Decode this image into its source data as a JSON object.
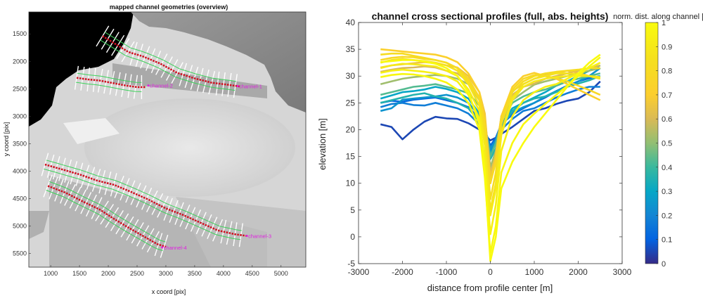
{
  "chart_data": [
    {
      "type": "image-overlay",
      "title": "mapped channel geometries (overview)",
      "xlabel": "x coord [pix]",
      "ylabel": "y coord [pix]",
      "xlim": [
        620,
        5430
      ],
      "ylim": [
        5750,
        1100
      ],
      "y_reversed": true,
      "xticks": [
        1000,
        1500,
        2000,
        2500,
        3000,
        3500,
        4000,
        4500,
        5000
      ],
      "yticks": [
        1500,
        2000,
        2500,
        3000,
        3500,
        4000,
        4500,
        5000,
        5500
      ],
      "channels": [
        {
          "name": "channel-1",
          "label_at": [
            4270,
            2450
          ],
          "centerline": [
            [
              1900,
              1540
            ],
            [
              2150,
              1700
            ],
            [
              2350,
              1830
            ],
            [
              2600,
              1910
            ],
            [
              2900,
              2040
            ],
            [
              3200,
              2210
            ],
            [
              3500,
              2310
            ],
            [
              3800,
              2390
            ],
            [
              4100,
              2430
            ],
            [
              4300,
              2460
            ]
          ]
        },
        {
          "name": "channel-2",
          "label_at": [
            2720,
            2440
          ],
          "centerline": [
            [
              1450,
              2300
            ],
            [
              1650,
              2330
            ],
            [
              1850,
              2350
            ],
            [
              2050,
              2390
            ],
            [
              2300,
              2440
            ],
            [
              2500,
              2470
            ],
            [
              2650,
              2470
            ]
          ]
        },
        {
          "name": "channel-3",
          "label_at": [
            4430,
            5180
          ],
          "centerline": [
            [
              900,
              3880
            ],
            [
              1200,
              3970
            ],
            [
              1500,
              4060
            ],
            [
              1800,
              4170
            ],
            [
              2100,
              4250
            ],
            [
              2400,
              4380
            ],
            [
              2700,
              4520
            ],
            [
              3000,
              4680
            ],
            [
              3300,
              4800
            ],
            [
              3600,
              4940
            ],
            [
              3900,
              5080
            ],
            [
              4200,
              5150
            ],
            [
              4400,
              5180
            ]
          ]
        },
        {
          "name": "channel-4",
          "label_at": [
            2960,
            5390
          ],
          "centerline": [
            [
              950,
              4270
            ],
            [
              1250,
              4390
            ],
            [
              1550,
              4550
            ],
            [
              1850,
              4700
            ],
            [
              2100,
              4870
            ],
            [
              2350,
              5030
            ],
            [
              2600,
              5180
            ],
            [
              2850,
              5330
            ],
            [
              3000,
              5380
            ]
          ]
        }
      ]
    },
    {
      "type": "line",
      "title": "channel cross sectional profiles (full, abs. heights)",
      "xlabel": "distance from profile center [m]",
      "ylabel": "elevation [m]",
      "xlim": [
        -3000,
        3000
      ],
      "ylim": [
        -5,
        40
      ],
      "xticks": [
        -3000,
        -2000,
        -1000,
        0,
        1000,
        2000,
        3000
      ],
      "yticks": [
        -5,
        0,
        5,
        10,
        15,
        20,
        25,
        30,
        35,
        40
      ],
      "colorbar": {
        "label": "norm. dist. along channel [-]",
        "range": [
          0,
          1
        ],
        "ticks": [
          0,
          0.1,
          0.2,
          0.3,
          0.4,
          0.5,
          0.6,
          0.7,
          0.8,
          0.9,
          1
        ],
        "colormap": "parula"
      },
      "x": [
        -2500,
        -2250,
        -2000,
        -1750,
        -1500,
        -1250,
        -1000,
        -750,
        -500,
        -250,
        -125,
        0,
        125,
        250,
        500,
        750,
        1000,
        1250,
        1500,
        1750,
        2000,
        2250,
        2500
      ],
      "series": [
        {
          "t": 0.05,
          "values": [
            21,
            20.5,
            18.2,
            20,
            21.5,
            22.4,
            22.1,
            22,
            21.2,
            20,
            19,
            18,
            18.5,
            19.2,
            20.5,
            22,
            23.5,
            24,
            24.8,
            25.4,
            25.8,
            27,
            29
          ]
        },
        {
          "t": 0.12,
          "values": [
            25,
            25.4,
            25.2,
            25.6,
            25.8,
            26,
            25.5,
            25,
            24.2,
            22,
            20,
            17,
            18.5,
            21,
            22.8,
            24,
            25,
            26,
            27.2,
            28.2,
            29,
            29.6,
            30
          ]
        },
        {
          "t": 0.18,
          "values": [
            24.2,
            24.8,
            25,
            24.6,
            24.5,
            25,
            24.5,
            24,
            23,
            21,
            19,
            16,
            17.5,
            20,
            22,
            23.5,
            24,
            25,
            26,
            26.8,
            27.5,
            28,
            28
          ]
        },
        {
          "t": 0.24,
          "values": [
            23.5,
            24,
            25.6,
            25.8,
            26,
            26.2,
            26.5,
            26,
            25,
            22.5,
            20,
            16.5,
            18,
            21,
            23.2,
            24.2,
            25,
            26.2,
            27.2,
            28,
            29,
            30,
            31.5
          ]
        },
        {
          "t": 0.3,
          "values": [
            25.8,
            26.4,
            27,
            27.2,
            27.5,
            28,
            27.6,
            27,
            25.8,
            23,
            20,
            15.5,
            17.5,
            21,
            24,
            25,
            26,
            27,
            28.2,
            29,
            30,
            31,
            32
          ]
        },
        {
          "t": 0.36,
          "values": [
            25,
            25.5,
            26,
            26.5,
            26.8,
            26.2,
            25.8,
            25,
            24,
            21.5,
            19,
            14.5,
            16.5,
            20.5,
            23.5,
            25,
            25.8,
            26.2,
            27,
            28,
            28.6,
            29.2,
            30
          ]
        },
        {
          "t": 0.43,
          "values": [
            26.5,
            27,
            27.5,
            28,
            28.2,
            28.5,
            28,
            27.5,
            26.8,
            24.5,
            21,
            15,
            17.5,
            21.5,
            25,
            26.2,
            27,
            27.5,
            28.2,
            29,
            29.5,
            30,
            30.5
          ]
        },
        {
          "t": 0.52,
          "values": [
            28.5,
            29,
            29.5,
            29.8,
            30,
            30.2,
            30,
            29.5,
            28.5,
            25.5,
            22,
            13,
            16,
            21.5,
            25.5,
            27,
            28.4,
            29,
            29.5,
            30,
            30.5,
            31,
            31.5
          ]
        },
        {
          "t": 0.6,
          "values": [
            30.8,
            31.2,
            31.5,
            31.6,
            31.8,
            31.6,
            31,
            30.5,
            29,
            26,
            22,
            12,
            15,
            22,
            26.5,
            28,
            28.6,
            29.5,
            30,
            30.5,
            31,
            31.5,
            32
          ]
        },
        {
          "t": 0.66,
          "values": [
            31.6,
            32,
            32.2,
            32.4,
            32.6,
            32.4,
            32,
            31.6,
            30,
            27,
            23,
            11,
            15.5,
            22.5,
            27.2,
            28.5,
            29.5,
            30.2,
            30.5,
            31,
            30.6,
            30,
            29.5
          ]
        },
        {
          "t": 0.72,
          "values": [
            35,
            34.8,
            34.6,
            34.4,
            34.2,
            34,
            33.5,
            32.6,
            30.5,
            27,
            22,
            10,
            14.5,
            22.5,
            28,
            30,
            30.6,
            30,
            29.5,
            28.5,
            27.5,
            26.5,
            25.5
          ]
        },
        {
          "t": 0.78,
          "values": [
            33,
            33.4,
            33.6,
            33.5,
            33.2,
            33,
            32.5,
            31.5,
            29.5,
            26,
            21,
            10,
            14,
            22,
            27.5,
            29.5,
            30.2,
            30,
            29.6,
            29,
            28.2,
            27.4,
            26.5
          ]
        },
        {
          "t": 0.82,
          "values": [
            34,
            34.2,
            34.2,
            33.8,
            33.4,
            33,
            32.5,
            31.5,
            29,
            25.5,
            20,
            7,
            12,
            21,
            27,
            29,
            30,
            30.5,
            30.8,
            31,
            31.2,
            31.5,
            31.5
          ]
        },
        {
          "t": 0.86,
          "values": [
            32.5,
            33,
            33.2,
            33,
            32.8,
            32.5,
            32,
            31,
            28.5,
            24.5,
            18,
            5,
            10,
            19.5,
            26,
            28.5,
            29.5,
            30,
            30.5,
            30.5,
            30.3,
            30,
            29.5
          ]
        },
        {
          "t": 0.9,
          "values": [
            31.5,
            32,
            32.3,
            32.2,
            32,
            31.8,
            31,
            30,
            27.5,
            23.5,
            17,
            4,
            9,
            19,
            25.5,
            28,
            29,
            29.5,
            29.8,
            30,
            30,
            30,
            29.8
          ]
        },
        {
          "t": 0.94,
          "values": [
            30.6,
            31,
            31.2,
            31,
            30.8,
            30.5,
            30,
            29,
            26.5,
            22,
            14,
            0.5,
            6,
            16,
            22.5,
            25.5,
            27,
            28,
            28.5,
            29.5,
            30.5,
            31.5,
            32.5
          ]
        },
        {
          "t": 0.98,
          "values": [
            29.8,
            30.2,
            30.4,
            30.3,
            30,
            29.5,
            28.8,
            27.5,
            25,
            20,
            11,
            -3,
            2,
            12,
            17.5,
            21,
            23,
            24.8,
            26.5,
            28.2,
            30,
            31.8,
            33.5
          ]
        },
        {
          "t": 1.0,
          "values": [
            32.6,
            32.8,
            33,
            33,
            32.7,
            32.3,
            31.5,
            30,
            27,
            21,
            12,
            -4.5,
            0,
            9,
            14,
            17.5,
            20.5,
            23,
            25.5,
            28,
            30.5,
            32.5,
            34
          ]
        }
      ]
    }
  ]
}
